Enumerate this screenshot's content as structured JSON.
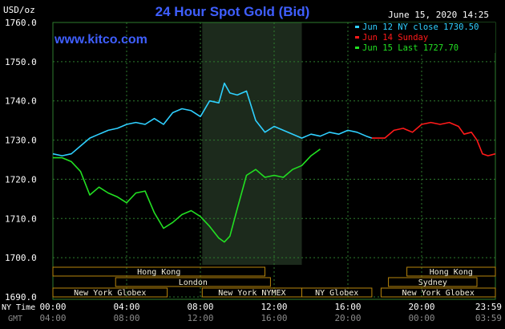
{
  "header": {
    "title": "24 Hour Spot Gold (Bid)",
    "units": "USD/oz",
    "date": "June 15, 2020 14:25",
    "site": "www.kitco.com"
  },
  "legend": [
    {
      "label": "Jun 12 NY close 1730.50",
      "color": "#2fd0ff"
    },
    {
      "label": "Jun 14 Sunday",
      "color": "#ff1a1a"
    },
    {
      "label": "Jun 15 Last 1727.70",
      "color": "#22e022"
    }
  ],
  "colors": {
    "background": "#000000",
    "grid": "#2e7d2e",
    "highlight": "#1c2a1c",
    "bar_fill": "#f5f0dc",
    "bar_border": "#b8860b",
    "axis_text": "#ffffff",
    "title": "#3f5fff"
  },
  "markets": {
    "row1": [
      {
        "name": "Hong Kong",
        "start": 0,
        "end": 11.5
      },
      {
        "name": "Hong Kong",
        "start": 19.2,
        "end": 24
      }
    ],
    "row2": [
      {
        "name": "London",
        "start": 3.4,
        "end": 11.8
      },
      {
        "name": "Sydney",
        "start": 18.2,
        "end": 23
      }
    ],
    "row3": [
      {
        "name": "New York Globex",
        "start": 0,
        "end": 6.2
      },
      {
        "name": "New York NYMEX",
        "start": 8.1,
        "end": 13.5
      },
      {
        "name": "NY Globex",
        "start": 13.5,
        "end": 17.3
      },
      {
        "name": "New York Globex",
        "start": 17.8,
        "end": 24
      }
    ]
  },
  "xaxis": {
    "ny_label": "NY Time",
    "gmt_label": "GMT",
    "ny_ticks": [
      "00:00",
      "04:00",
      "08:00",
      "12:00",
      "16:00",
      "20:00",
      "23:59"
    ],
    "gmt_ticks": [
      "04:00",
      "08:00",
      "12:00",
      "16:00",
      "20:00",
      "00:00",
      "03:59"
    ]
  },
  "chart_data": {
    "type": "line",
    "title": "24 Hour Spot Gold (Bid)",
    "ylabel": "USD/oz",
    "ylim": [
      1690,
      1760
    ],
    "yticks": [
      "1690.0",
      "1700.0",
      "1710.0",
      "1720.0",
      "1730.0",
      "1740.0",
      "1750.0",
      "1760.0"
    ],
    "xlim": [
      0,
      24
    ],
    "grid": true,
    "legend_position": "top-right",
    "highlight_hours": [
      8.1,
      13.5
    ],
    "series": [
      {
        "name": "Jun 12 NY close 1730.50",
        "color": "#2fd0ff",
        "x": [
          0,
          0.5,
          1.0,
          1.5,
          2.0,
          2.5,
          3.0,
          3.5,
          4.0,
          4.5,
          5.0,
          5.5,
          6.0,
          6.5,
          7.0,
          7.5,
          8.0,
          8.5,
          9.0,
          9.3,
          9.6,
          10.0,
          10.5,
          11.0,
          11.5,
          12.0,
          12.5,
          13.0,
          13.5,
          14.0,
          14.5,
          15.0,
          15.5,
          16.0,
          16.5,
          17.0,
          17.3
        ],
        "y": [
          1726.5,
          1726.0,
          1726.5,
          1728.5,
          1730.5,
          1731.5,
          1732.5,
          1733.0,
          1734.0,
          1734.5,
          1734.0,
          1735.5,
          1734.0,
          1737.0,
          1738.0,
          1737.5,
          1736.0,
          1740.0,
          1739.5,
          1744.5,
          1742.0,
          1741.5,
          1742.5,
          1735.0,
          1732.0,
          1733.5,
          1732.5,
          1731.5,
          1730.5,
          1731.5,
          1731.0,
          1732.0,
          1731.5,
          1732.5,
          1732.0,
          1731.0,
          1730.5
        ]
      },
      {
        "name": "Jun 14 Sunday",
        "color": "#ff1a1a",
        "x": [
          17.3,
          18.0,
          18.5,
          19.0,
          19.5,
          20.0,
          20.5,
          21.0,
          21.5,
          22.0,
          22.3,
          22.7,
          23.0,
          23.3,
          23.6,
          24.0
        ],
        "y": [
          1730.5,
          1730.5,
          1732.5,
          1733.0,
          1732.0,
          1734.0,
          1734.5,
          1734.0,
          1734.5,
          1733.5,
          1731.5,
          1732.0,
          1730.0,
          1726.5,
          1726.0,
          1726.5
        ]
      },
      {
        "name": "Jun 15 Last 1727.70",
        "color": "#22e022",
        "x": [
          0,
          0.5,
          1.0,
          1.5,
          2.0,
          2.5,
          3.0,
          3.5,
          4.0,
          4.5,
          5.0,
          5.5,
          6.0,
          6.5,
          7.0,
          7.5,
          8.0,
          8.5,
          9.0,
          9.3,
          9.6,
          10.0,
          10.5,
          11.0,
          11.5,
          12.0,
          12.5,
          13.0,
          13.5,
          14.0,
          14.5
        ],
        "y": [
          1725.5,
          1725.5,
          1724.5,
          1722.0,
          1716.0,
          1718.0,
          1716.5,
          1715.5,
          1714.0,
          1716.5,
          1717.0,
          1711.5,
          1707.5,
          1709.0,
          1711.0,
          1712.0,
          1710.5,
          1708.0,
          1705.0,
          1704.0,
          1705.5,
          1712.5,
          1721.0,
          1722.5,
          1720.5,
          1721.0,
          1720.5,
          1722.5,
          1723.5,
          1726.0,
          1727.7
        ]
      }
    ]
  }
}
